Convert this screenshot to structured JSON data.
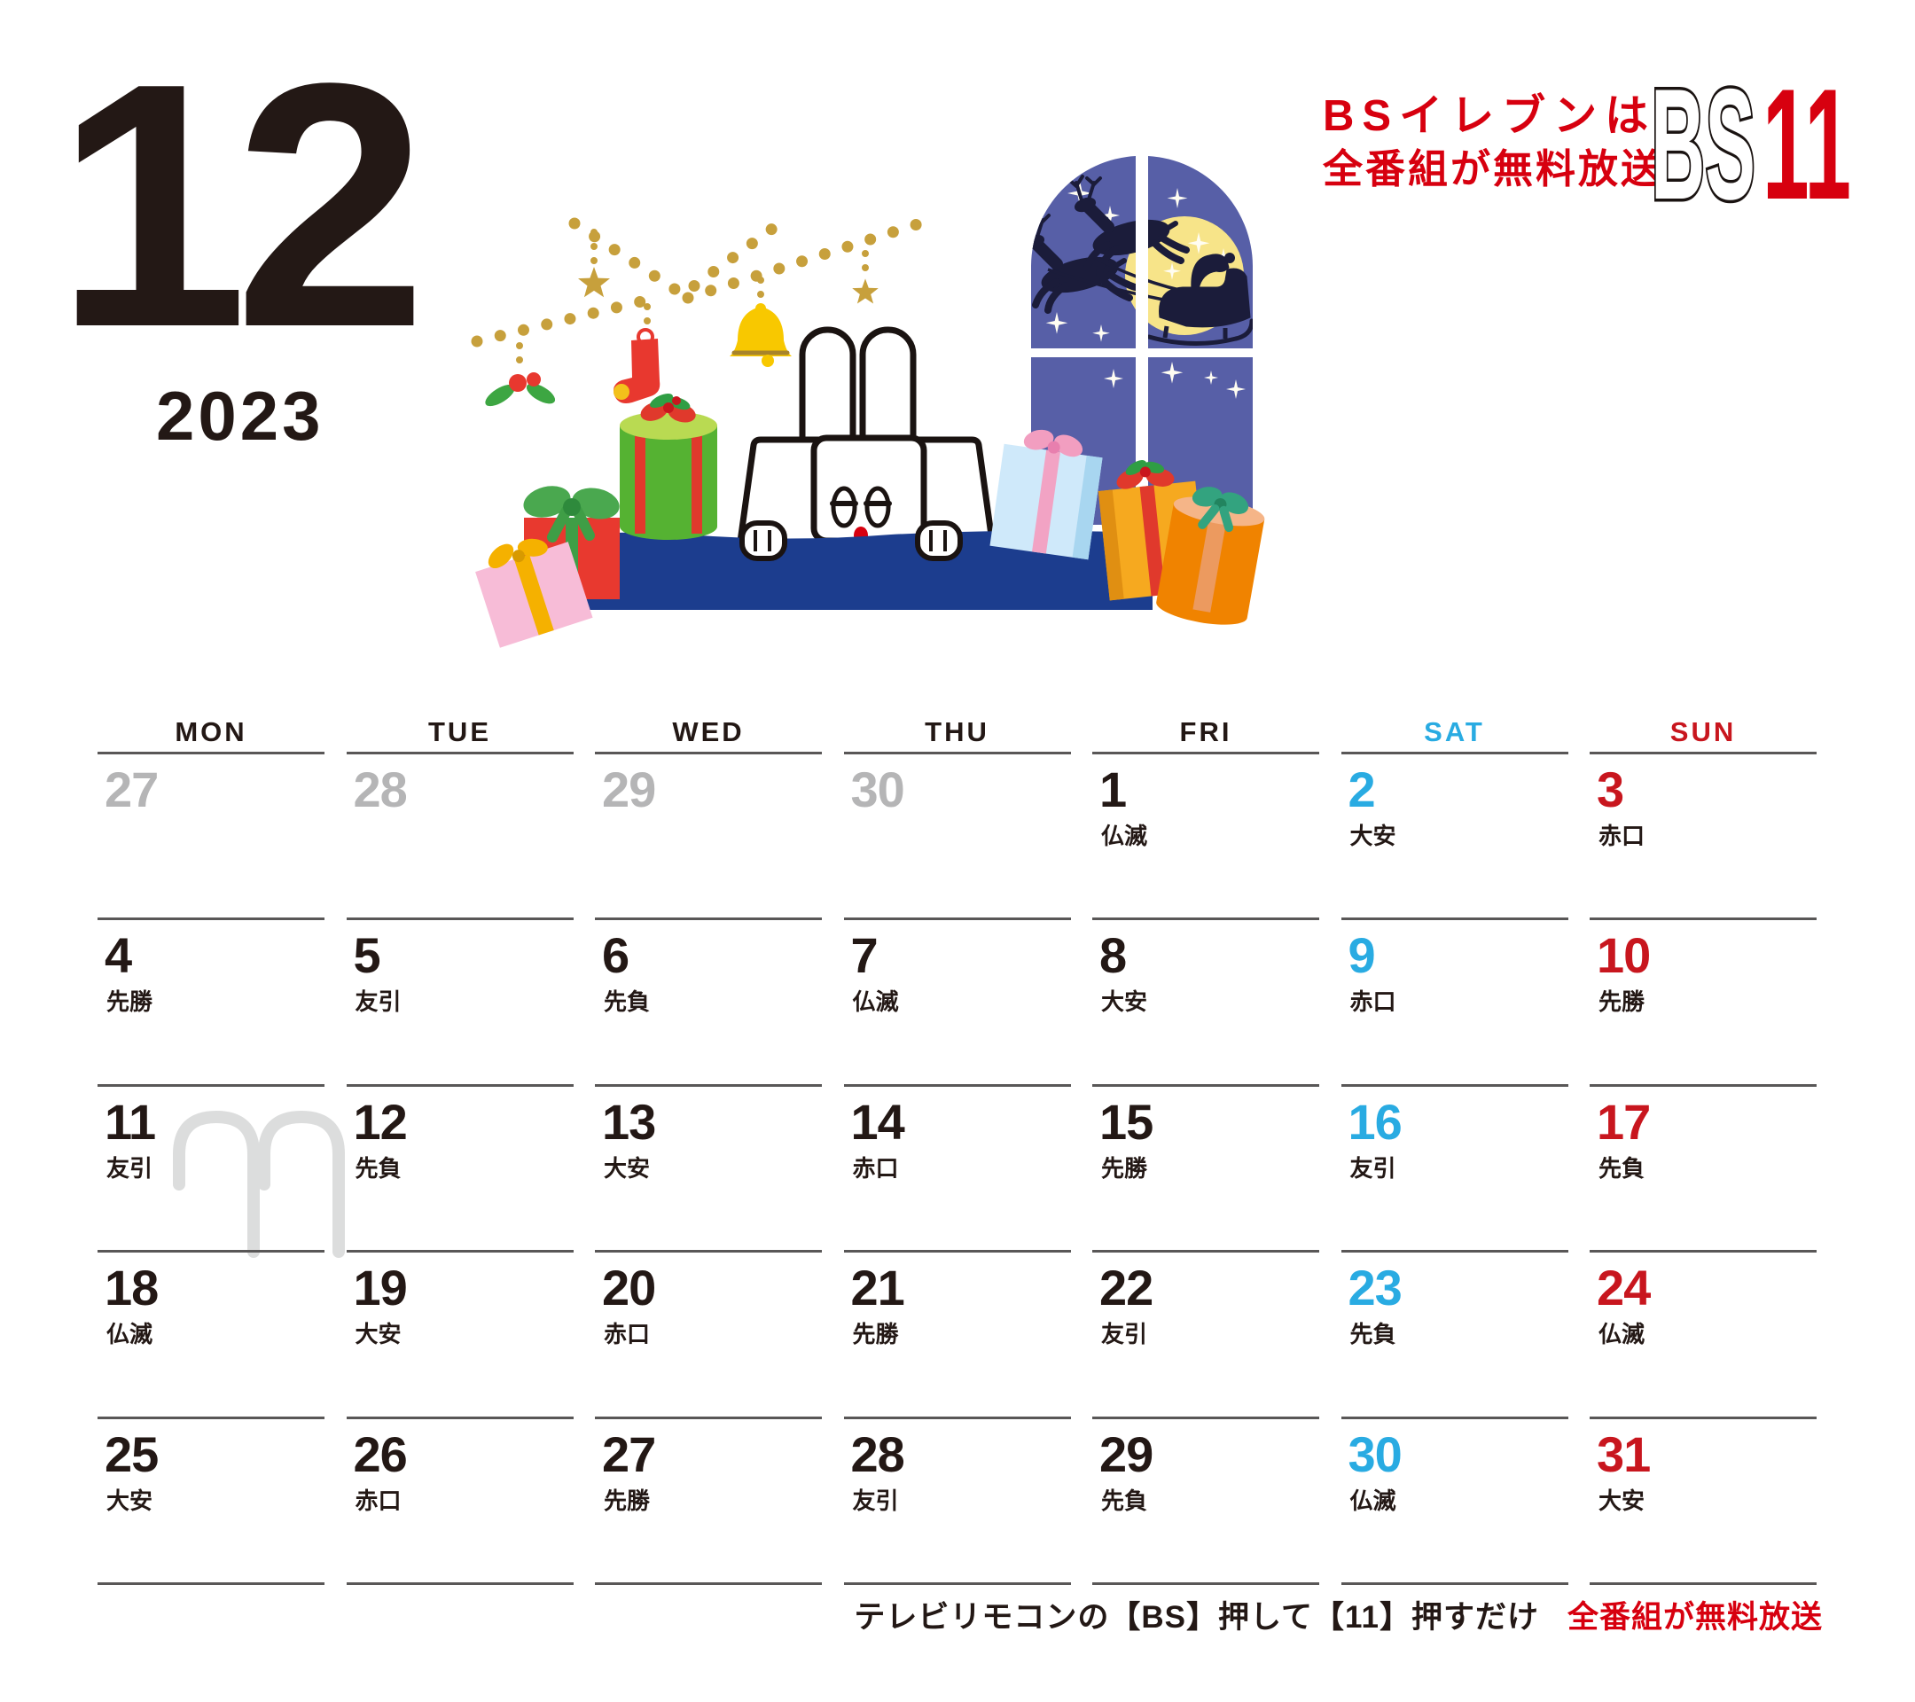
{
  "page": {
    "month": "12",
    "year": "2023"
  },
  "branding": {
    "slogan_line1": "BSイレブンは",
    "slogan_line2": "全番組が無料放送",
    "logo_bs": "BS",
    "logo_11": "11"
  },
  "footer": {
    "instruction": "テレビリモコンの【BS】押して【11】押すだけ",
    "highlight": "全番組が無料放送"
  },
  "calendar": {
    "weekday_headers": [
      {
        "label": "MON",
        "color": "#231815"
      },
      {
        "label": "TUE",
        "color": "#231815"
      },
      {
        "label": "WED",
        "color": "#231815"
      },
      {
        "label": "THU",
        "color": "#231815"
      },
      {
        "label": "FRI",
        "color": "#231815"
      },
      {
        "label": "SAT",
        "color": "#29abe2"
      },
      {
        "label": "SUN",
        "color": "#c8161e"
      }
    ],
    "row_line_y": [
      848,
      1035.4,
      1222.8,
      1410.2,
      1597.6,
      1785
    ],
    "weeks": [
      [
        {
          "day": "27",
          "type": "prev"
        },
        {
          "day": "28",
          "type": "prev"
        },
        {
          "day": "29",
          "type": "prev"
        },
        {
          "day": "30",
          "type": "prev"
        },
        {
          "day": "1",
          "rokuyo": "仏滅",
          "type": "wk"
        },
        {
          "day": "2",
          "rokuyo": "大安",
          "type": "sat"
        },
        {
          "day": "3",
          "rokuyo": "赤口",
          "type": "sun"
        }
      ],
      [
        {
          "day": "4",
          "rokuyo": "先勝",
          "type": "wk"
        },
        {
          "day": "5",
          "rokuyo": "友引",
          "type": "wk"
        },
        {
          "day": "6",
          "rokuyo": "先負",
          "type": "wk"
        },
        {
          "day": "7",
          "rokuyo": "仏滅",
          "type": "wk"
        },
        {
          "day": "8",
          "rokuyo": "大安",
          "type": "wk"
        },
        {
          "day": "9",
          "rokuyo": "赤口",
          "type": "sat"
        },
        {
          "day": "10",
          "rokuyo": "先勝",
          "type": "sun"
        }
      ],
      [
        {
          "day": "11",
          "rokuyo": "友引",
          "type": "wk"
        },
        {
          "day": "12",
          "rokuyo": "先負",
          "type": "wk"
        },
        {
          "day": "13",
          "rokuyo": "大安",
          "type": "wk"
        },
        {
          "day": "14",
          "rokuyo": "赤口",
          "type": "wk"
        },
        {
          "day": "15",
          "rokuyo": "先勝",
          "type": "wk"
        },
        {
          "day": "16",
          "rokuyo": "友引",
          "type": "sat"
        },
        {
          "day": "17",
          "rokuyo": "先負",
          "type": "sun"
        }
      ],
      [
        {
          "day": "18",
          "rokuyo": "仏滅",
          "type": "wk"
        },
        {
          "day": "19",
          "rokuyo": "大安",
          "type": "wk"
        },
        {
          "day": "20",
          "rokuyo": "赤口",
          "type": "wk"
        },
        {
          "day": "21",
          "rokuyo": "先勝",
          "type": "wk"
        },
        {
          "day": "22",
          "rokuyo": "友引",
          "type": "wk"
        },
        {
          "day": "23",
          "rokuyo": "先負",
          "type": "sat"
        },
        {
          "day": "24",
          "rokuyo": "仏滅",
          "type": "sun"
        }
      ],
      [
        {
          "day": "25",
          "rokuyo": "大安",
          "type": "wk"
        },
        {
          "day": "26",
          "rokuyo": "赤口",
          "type": "wk"
        },
        {
          "day": "27",
          "rokuyo": "先勝",
          "type": "wk"
        },
        {
          "day": "28",
          "rokuyo": "友引",
          "type": "wk"
        },
        {
          "day": "29",
          "rokuyo": "先負",
          "type": "wk"
        },
        {
          "day": "30",
          "rokuyo": "仏滅",
          "type": "sat"
        },
        {
          "day": "31",
          "rokuyo": "大安",
          "type": "sun"
        }
      ],
      [
        {},
        {},
        {},
        {},
        {},
        {},
        {}
      ]
    ]
  },
  "colors": {
    "text_black": "#231815",
    "prev_month_gray": "#b5b5b6",
    "grid_line_gray": "#595757",
    "saturday_blue": "#29abe2",
    "sunday_red": "#c8161e",
    "accent_red": "#d7000f",
    "garland_gold": "#c7a03c",
    "window_blue": "#575fa7",
    "moon_yellow": "#f7e489",
    "silhouette_navy": "#1b1c3a",
    "rug_blue": "#1c3d8e",
    "watermark_gray": "#dcdddd"
  },
  "illustration": {
    "description": "Christmas scene: sleepy white rabbit mascot behind blue table, gift boxes, garland with star bell stocking holly, window with moon and Santa sleigh silhouette",
    "icons": [
      "garland-dots",
      "gold-star",
      "christmas-bell",
      "stocking",
      "holly",
      "window-night-sky",
      "full-moon",
      "santa-sleigh-silhouette",
      "reindeer-silhouette",
      "rabbit-mascot",
      "gift-boxes"
    ]
  }
}
